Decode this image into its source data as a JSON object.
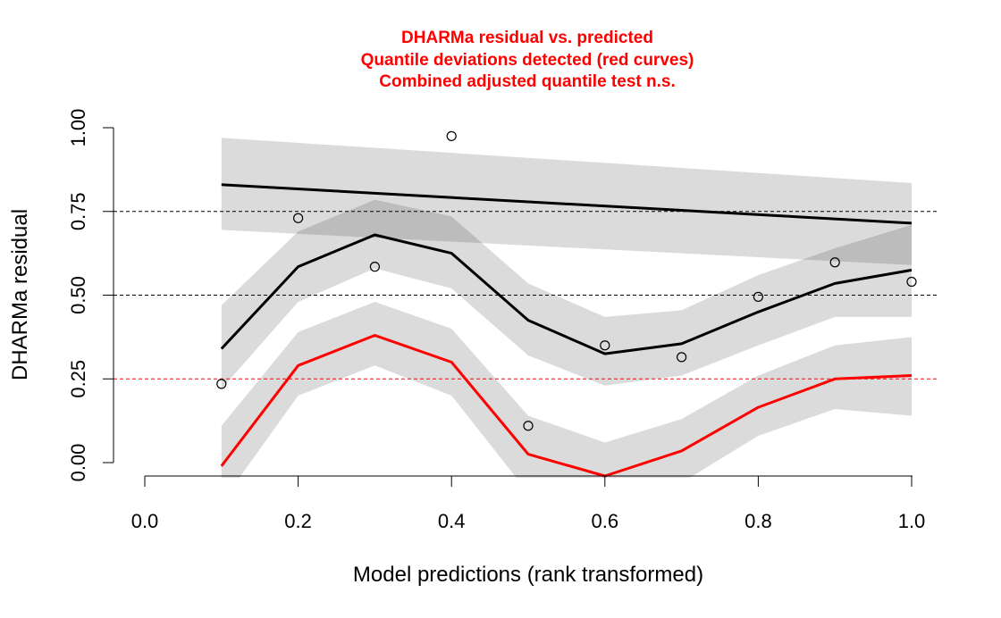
{
  "chart_data": {
    "type": "line",
    "title": [
      "DHARMa residual vs. predicted",
      "Quantile deviations detected (red curves)",
      "Combined adjusted quantile test n.s."
    ],
    "title_color": "#ff0000",
    "xlabel": "Model predictions (rank transformed)",
    "ylabel": "DHARMa residual",
    "xlim": [
      -0.02,
      1.02
    ],
    "ylim": [
      0.0,
      1.0
    ],
    "x_ticks": [
      "0.0",
      "0.2",
      "0.4",
      "0.6",
      "0.8",
      "1.0"
    ],
    "y_ticks": [
      "0.00",
      "0.25",
      "0.50",
      "0.75",
      "1.00"
    ],
    "grid": false,
    "reference_lines": [
      {
        "y": 0.25,
        "color": "#ff0000",
        "style": "dashed"
      },
      {
        "y": 0.5,
        "color": "#000000",
        "style": "dashed"
      },
      {
        "y": 0.75,
        "color": "#000000",
        "style": "dashed"
      }
    ],
    "points": {
      "x": [
        0.1,
        0.2,
        0.3,
        0.4,
        0.5,
        0.6,
        0.7,
        0.8,
        0.9,
        1.0
      ],
      "y": [
        0.235,
        0.73,
        0.585,
        0.975,
        0.11,
        0.35,
        0.315,
        0.495,
        0.598,
        0.54
      ]
    },
    "series": [
      {
        "quantile": 0.25,
        "color": "#ff0000",
        "x": [
          0.1,
          0.2,
          0.3,
          0.4,
          0.5,
          0.6,
          0.7,
          0.8,
          0.9,
          1.0
        ],
        "y": [
          -0.01,
          0.29,
          0.38,
          0.3,
          0.025,
          -0.04,
          0.035,
          0.165,
          0.25,
          0.26
        ],
        "band_lower": [
          -0.12,
          0.2,
          0.29,
          0.2,
          -0.09,
          -0.14,
          -0.06,
          0.08,
          0.16,
          0.14
        ],
        "band_upper": [
          0.11,
          0.39,
          0.48,
          0.4,
          0.14,
          0.06,
          0.13,
          0.26,
          0.35,
          0.375
        ]
      },
      {
        "quantile": 0.5,
        "color": "#000000",
        "x": [
          0.1,
          0.2,
          0.3,
          0.4,
          0.5,
          0.6,
          0.7,
          0.8,
          0.9,
          1.0
        ],
        "y": [
          0.34,
          0.585,
          0.68,
          0.625,
          0.425,
          0.325,
          0.355,
          0.45,
          0.535,
          0.575
        ],
        "band_lower": [
          0.22,
          0.48,
          0.58,
          0.52,
          0.32,
          0.23,
          0.26,
          0.35,
          0.435,
          0.435
        ],
        "band_upper": [
          0.47,
          0.69,
          0.785,
          0.735,
          0.535,
          0.435,
          0.455,
          0.56,
          0.64,
          0.71
        ]
      },
      {
        "quantile": 0.75,
        "color": "#000000",
        "x": [
          0.1,
          1.0
        ],
        "y": [
          0.83,
          0.715
        ],
        "band_lower": [
          0.695,
          0.59
        ],
        "band_upper": [
          0.97,
          0.835
        ]
      }
    ]
  }
}
